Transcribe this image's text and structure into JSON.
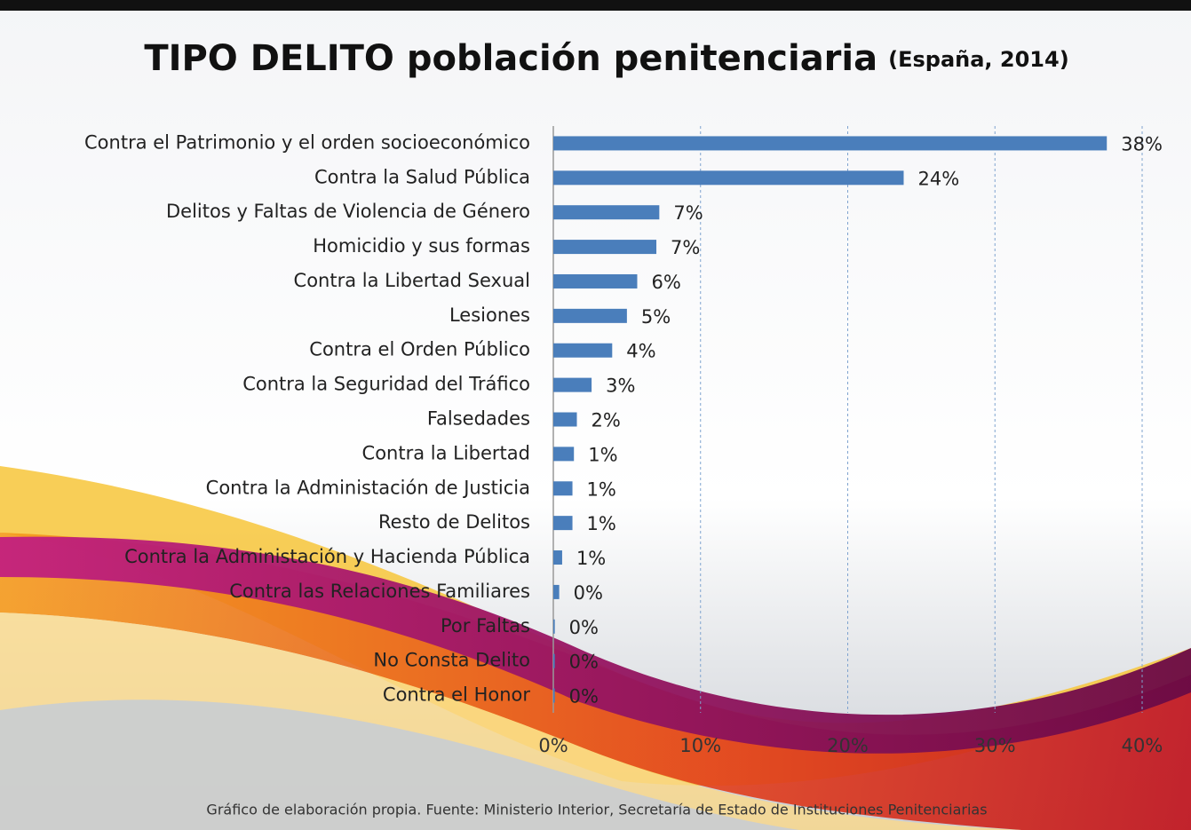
{
  "chart_data": {
    "type": "bar",
    "title": "TIPO DELITO población penitenciaria",
    "subtitle": "(España, 2014)",
    "categories": [
      "Contra el Patrimonio y el orden socioeconómico",
      "Contra la Salud Pública",
      "Delitos y Faltas de Violencia de Género",
      "Homicidio y sus formas",
      "Contra la Libertad Sexual",
      "Lesiones",
      "Contra el Orden Público",
      "Contra la Seguridad del Tráfico",
      "Falsedades",
      "Contra la Libertad",
      "Contra la Administación de Justicia",
      "Resto de Delitos",
      "Contra la Administación y Hacienda Pública",
      "Contra las Relaciones Familiares",
      "Por Faltas",
      "No Consta Delito",
      "Contra el Honor"
    ],
    "values": [
      37.6,
      23.8,
      7.2,
      7.0,
      5.7,
      5.0,
      4.0,
      2.6,
      1.6,
      1.4,
      1.3,
      1.3,
      0.6,
      0.4,
      0.1,
      0.1,
      0.1
    ],
    "value_labels": [
      "38%",
      "24%",
      "7%",
      "7%",
      "6%",
      "5%",
      "4%",
      "3%",
      "2%",
      "1%",
      "1%",
      "1%",
      "1%",
      "0%",
      "0%",
      "0%",
      "0%"
    ],
    "color": "#4a7ebb",
    "xlim": [
      0,
      40
    ],
    "xticks": [
      {
        "value": 0,
        "label": "0%"
      },
      {
        "value": 10,
        "label": "10%"
      },
      {
        "value": 20,
        "label": "20%"
      },
      {
        "value": 30,
        "label": "30%"
      },
      {
        "value": 40,
        "label": "40%"
      }
    ],
    "grid": true,
    "source": "Gráfico de elaboración propia. Fuente: Ministerio Interior, Secretaría de Estado de Instituciones Penitenciarias"
  }
}
